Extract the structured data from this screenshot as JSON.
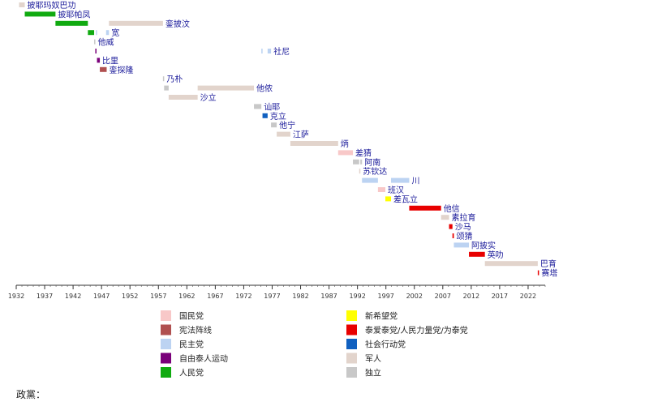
{
  "chart_data": {
    "type": "timeline",
    "xlim": [
      1932,
      2025
    ],
    "x_ticks": [
      1932,
      1937,
      1942,
      1947,
      1952,
      1957,
      1962,
      1967,
      1972,
      1977,
      1982,
      1987,
      1992,
      1997,
      2002,
      2007,
      2012,
      2017,
      2022
    ],
    "caption": "政黨：",
    "parties": [
      {
        "key": "kmt",
        "name": "国民党",
        "color": "#f8c8c8"
      },
      {
        "key": "seri",
        "name": "宪法阵线",
        "color": "#b05050"
      },
      {
        "key": "dem",
        "name": "民主党",
        "color": "#bcd3f2"
      },
      {
        "key": "free",
        "name": "自由泰人运动",
        "color": "#7a007a"
      },
      {
        "key": "people",
        "name": "人民党",
        "color": "#10aa10"
      },
      {
        "key": "nap",
        "name": "新希望党",
        "color": "#ffff00"
      },
      {
        "key": "trt",
        "name": "泰爱泰党/人民力量党/为泰党",
        "color": "#e80000"
      },
      {
        "key": "sap",
        "name": "社会行动党",
        "color": "#1060c0"
      },
      {
        "key": "mil",
        "name": "军人",
        "color": "#e2d4cc"
      },
      {
        "key": "ind",
        "name": "独立",
        "color": "#c8c8c8"
      }
    ],
    "rows": [
      {
        "label": "披耶玛奴巴功",
        "terms": [
          {
            "start": 1932.5,
            "end": 1933.5,
            "party": "mil"
          }
        ]
      },
      {
        "label": "披耶帕凤",
        "terms": [
          {
            "start": 1933.5,
            "end": 1938.9,
            "party": "people"
          }
        ]
      },
      {
        "label": "銮披汶",
        "terms": [
          {
            "start": 1938.9,
            "end": 1944.6,
            "party": "people"
          },
          {
            "start": 1948.3,
            "end": 1957.8,
            "party": "mil"
          }
        ]
      },
      {
        "label": "宽",
        "terms": [
          {
            "start": 1944.6,
            "end": 1945.7,
            "party": "people"
          },
          {
            "start": 1946.0,
            "end": 1946.2,
            "party": "dem"
          },
          {
            "start": 1947.8,
            "end": 1948.3,
            "party": "dem"
          }
        ]
      },
      {
        "label": "他威",
        "terms": [
          {
            "start": 1945.7,
            "end": 1945.9,
            "party": "ind"
          }
        ]
      },
      {
        "label": "社尼",
        "terms": [
          {
            "start": 1945.9,
            "end": 1946.0,
            "party": "free"
          },
          {
            "start": 1975.1,
            "end": 1975.3,
            "party": "dem"
          },
          {
            "start": 1976.2,
            "end": 1976.8,
            "party": "dem"
          }
        ]
      },
      {
        "label": "比里",
        "terms": [
          {
            "start": 1946.2,
            "end": 1946.7,
            "party": "free"
          }
        ]
      },
      {
        "label": "銮探隆",
        "terms": [
          {
            "start": 1946.7,
            "end": 1947.9,
            "party": "seri"
          }
        ]
      },
      {
        "label": "乃朴",
        "terms": [
          {
            "start": 1957.8,
            "end": 1958.0,
            "party": "ind"
          }
        ]
      },
      {
        "label": "他侬",
        "terms": [
          {
            "start": 1958.0,
            "end": 1958.8,
            "party": "ind"
          },
          {
            "start": 1963.9,
            "end": 1973.8,
            "party": "mil"
          }
        ]
      },
      {
        "label": "沙立",
        "terms": [
          {
            "start": 1958.8,
            "end": 1963.9,
            "party": "mil"
          }
        ]
      },
      {
        "label": "讪耶",
        "terms": [
          {
            "start": 1973.8,
            "end": 1975.1,
            "party": "ind"
          }
        ]
      },
      {
        "label": "克立",
        "terms": [
          {
            "start": 1975.3,
            "end": 1976.2,
            "party": "sap"
          }
        ]
      },
      {
        "label": "他宁",
        "terms": [
          {
            "start": 1976.8,
            "end": 1977.8,
            "party": "ind"
          }
        ]
      },
      {
        "label": "江萨",
        "terms": [
          {
            "start": 1977.8,
            "end": 1980.2,
            "party": "mil"
          }
        ]
      },
      {
        "label": "炳",
        "terms": [
          {
            "start": 1980.2,
            "end": 1988.6,
            "party": "mil"
          }
        ]
      },
      {
        "label": "差猜",
        "terms": [
          {
            "start": 1988.6,
            "end": 1991.2,
            "party": "kmt"
          }
        ]
      },
      {
        "label": "阿南",
        "terms": [
          {
            "start": 1991.2,
            "end": 1992.3,
            "party": "ind"
          },
          {
            "start": 1992.5,
            "end": 1992.8,
            "party": "ind"
          }
        ]
      },
      {
        "label": "苏钦达",
        "terms": [
          {
            "start": 1992.3,
            "end": 1992.5,
            "party": "mil"
          }
        ]
      },
      {
        "label": "川",
        "terms": [
          {
            "start": 1992.8,
            "end": 1995.6,
            "party": "dem"
          },
          {
            "start": 1997.9,
            "end": 2001.1,
            "party": "dem"
          }
        ]
      },
      {
        "label": "班汉",
        "terms": [
          {
            "start": 1995.6,
            "end": 1996.9,
            "party": "kmt"
          }
        ]
      },
      {
        "label": "差瓦立",
        "terms": [
          {
            "start": 1996.9,
            "end": 1997.9,
            "party": "nap"
          }
        ]
      },
      {
        "label": "他信",
        "terms": [
          {
            "start": 2001.1,
            "end": 2006.7,
            "party": "trt"
          }
        ]
      },
      {
        "label": "素拉育",
        "terms": [
          {
            "start": 2006.7,
            "end": 2008.1,
            "party": "mil"
          }
        ]
      },
      {
        "label": "沙马",
        "terms": [
          {
            "start": 2008.1,
            "end": 2008.7,
            "party": "trt"
          }
        ]
      },
      {
        "label": "颂猜",
        "terms": [
          {
            "start": 2008.7,
            "end": 2008.95,
            "party": "trt"
          }
        ]
      },
      {
        "label": "阿披实",
        "terms": [
          {
            "start": 2008.95,
            "end": 2011.6,
            "party": "dem"
          }
        ]
      },
      {
        "label": "英叻",
        "terms": [
          {
            "start": 2011.6,
            "end": 2014.4,
            "party": "trt"
          }
        ]
      },
      {
        "label": "巴育",
        "terms": [
          {
            "start": 2014.4,
            "end": 2023.7,
            "party": "mil"
          }
        ]
      },
      {
        "label": "赛塔",
        "terms": [
          {
            "start": 2023.7,
            "end": 2023.9,
            "party": "trt"
          }
        ]
      }
    ]
  }
}
